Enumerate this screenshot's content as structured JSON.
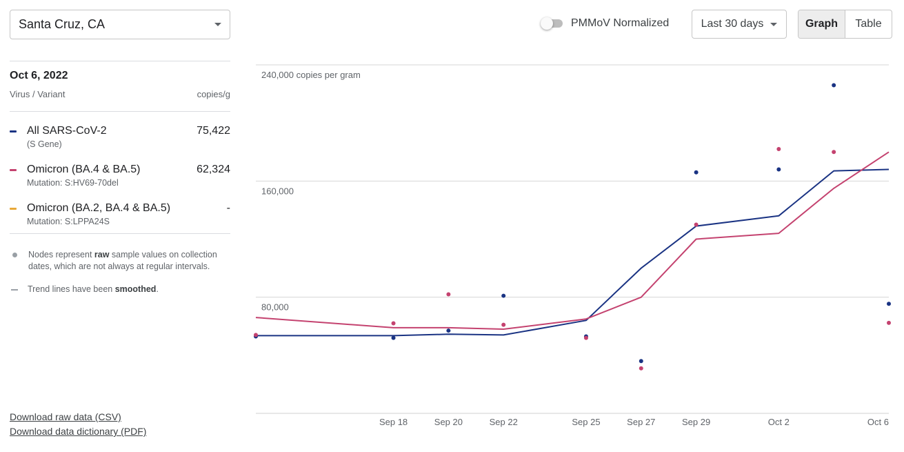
{
  "location": {
    "value": "Santa Cruz, CA"
  },
  "panel": {
    "date": "Oct 6, 2022",
    "col_left": "Virus / Variant",
    "col_right": "copies/g",
    "variants": [
      {
        "name": "All SARS-CoV-2",
        "sub": "(S Gene)",
        "value": "75,422",
        "color": "#1a3383"
      },
      {
        "name": "Omicron (BA.4 & BA.5)",
        "sub": "Mutation: S:HV69-70del",
        "value": "62,324",
        "color": "#c4426f"
      },
      {
        "name": "Omicron (BA.2, BA.4 & BA.5)",
        "sub": "Mutation: S:LPPA24S",
        "value": "-",
        "color": "#e8a838"
      }
    ],
    "note1": {
      "pre": "Nodes represent ",
      "bold": "raw",
      "post": " sample values on collection dates, which are not always at regular intervals."
    },
    "note2": {
      "pre": "Trend lines have been ",
      "bold": "smoothed",
      "post": "."
    }
  },
  "links": {
    "csv": "Download raw data (CSV)",
    "pdf": "Download data dictionary (PDF)"
  },
  "controls": {
    "normalize_label": "PMMoV Normalized",
    "range_label": "Last 30 days",
    "graph_label": "Graph",
    "table_label": "Table"
  },
  "chart_data": {
    "type": "line",
    "x_start": "Sep 13",
    "x_end": "Oct 6",
    "x_ticks": [
      "Sep 18",
      "Sep 20",
      "Sep 22",
      "Sep 25",
      "Sep 27",
      "Sep 29",
      "Oct 2",
      "Oct 6"
    ],
    "y_ticks": [
      80000,
      160000,
      240000
    ],
    "y_tick_labels": [
      "80,000",
      "160,000",
      "240,000 copies per gram"
    ],
    "ylim": [
      0,
      240000
    ],
    "grid": true,
    "series": [
      {
        "name": "All SARS-CoV-2",
        "color": "#1a3383",
        "points": [
          [
            "Sep 13",
            53000
          ],
          [
            "Sep 18",
            52000
          ],
          [
            "Sep 20",
            57000
          ],
          [
            "Sep 22",
            81000
          ],
          [
            "Sep 25",
            53000
          ],
          [
            "Sep 27",
            36000
          ],
          [
            "Sep 29",
            166000
          ],
          [
            "Oct 2",
            168000
          ],
          [
            "Oct 4",
            226000
          ],
          [
            "Oct 6",
            75422
          ]
        ],
        "trend": [
          [
            "Sep 13",
            53500
          ],
          [
            "Sep 18",
            53500
          ],
          [
            "Sep 20",
            54500
          ],
          [
            "Sep 22",
            54000
          ],
          [
            "Sep 25",
            64000
          ],
          [
            "Sep 27",
            100000
          ],
          [
            "Sep 29",
            129000
          ],
          [
            "Oct 2",
            136000
          ],
          [
            "Oct 4",
            167000
          ],
          [
            "Oct 6",
            168000
          ]
        ]
      },
      {
        "name": "Omicron (BA.4 & BA.5)",
        "color": "#c4426f",
        "points": [
          [
            "Sep 13",
            54000
          ],
          [
            "Sep 18",
            62000
          ],
          [
            "Sep 20",
            82000
          ],
          [
            "Sep 22",
            61000
          ],
          [
            "Sep 25",
            52000
          ],
          [
            "Sep 27",
            31000
          ],
          [
            "Sep 29",
            130000
          ],
          [
            "Oct 2",
            182000
          ],
          [
            "Oct 4",
            180000
          ],
          [
            "Oct 6",
            62324
          ]
        ],
        "trend": [
          [
            "Sep 13",
            66000
          ],
          [
            "Sep 18",
            59000
          ],
          [
            "Sep 20",
            59000
          ],
          [
            "Sep 22",
            58000
          ],
          [
            "Sep 25",
            65000
          ],
          [
            "Sep 27",
            80000
          ],
          [
            "Sep 29",
            120000
          ],
          [
            "Oct 2",
            124000
          ],
          [
            "Oct 4",
            155000
          ],
          [
            "Oct 6",
            180000
          ]
        ]
      }
    ]
  }
}
